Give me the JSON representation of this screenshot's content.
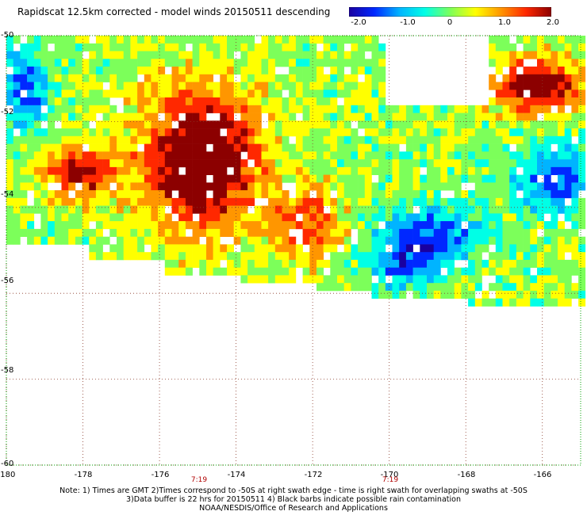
{
  "title": "Rapidscat 12.5km corrected - model winds 20150511 descending",
  "colorbar": {
    "ticks": [
      "-2.0",
      "-1.0",
      "0",
      "1.0",
      "2.0"
    ],
    "min": -2.0,
    "max": 2.0,
    "colors": [
      "#1a00a0",
      "#0028ff",
      "#00b4ff",
      "#00ffe6",
      "#7cff5a",
      "#ffff00",
      "#ff9600",
      "#ff2800",
      "#8c0000"
    ]
  },
  "map": {
    "lon_ticks": [
      "-180",
      "-178",
      "-176",
      "-174",
      "-172",
      "-170",
      "-168",
      "-166"
    ],
    "lat_ticks": [
      "-50",
      "-52",
      "-54",
      "-56",
      "-58",
      "-60"
    ],
    "lon_range": [
      -180,
      -165
    ],
    "lat_range": [
      -60,
      -50
    ],
    "gridlines": true,
    "time_labels": [
      {
        "text": "7:19",
        "lon": -175
      },
      {
        "text": "7:19",
        "lon": -170
      }
    ]
  },
  "notes": [
    "Note: 1) Times are GMT 2)Times correspond to -50S at right swath edge - time is right swath for overlapping swaths at -50S",
    "3)Data buffer is 22 hrs for 20150511 4) Black barbs indicate possible rain contamination",
    "NOAA/NESDIS/Office of Research and Applications"
  ]
}
